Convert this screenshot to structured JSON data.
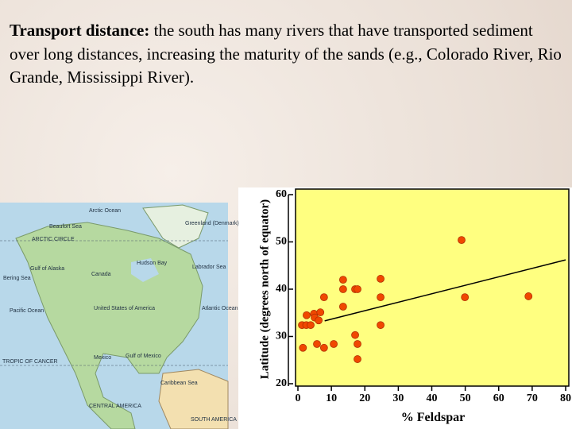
{
  "text": {
    "bold": "Transport distance:",
    "body": "the south has many rivers that have transported sediment over long distances, increasing the maturity of the sands (e.g., Colorado River, Rio Grande, Mississippi River)."
  },
  "map": {
    "labels": [
      "Arctic Ocean",
      "Beaufort Sea",
      "ARCTIC CIRCLE",
      "Gulf of Alaska",
      "Bering Sea",
      "Canada",
      "Hudson Bay",
      "Greenland (Denmark)",
      "Labrador Sea",
      "United States of America",
      "Pacific Ocean",
      "Atlantic Ocean",
      "Gulf of Mexico",
      "Mexico",
      "TROPIC OF CANCER",
      "Caribbean Sea",
      "CENTRAL AMERICA",
      "SOUTH AMERICA"
    ]
  },
  "chart_data": {
    "type": "scatter",
    "x_label": "% Feldspar",
    "y_label": "Latitude (degrees north of equator)",
    "x": [
      1.5,
      1.2,
      2.5,
      2.6,
      3.8,
      4.8,
      5,
      5.7,
      6.2,
      6.7,
      7.8,
      7.8,
      10.7,
      13.5,
      13.5,
      13.5,
      17.1,
      17.8,
      17.1,
      17.8,
      17.8,
      24.7,
      24.7,
      24.7,
      48.9,
      49.9,
      68.9
    ],
    "values": [
      27.6,
      32.4,
      32.4,
      34.5,
      32.4,
      34.8,
      34,
      28.4,
      33.4,
      35.1,
      38.3,
      27.6,
      28.4,
      42,
      40,
      36.3,
      40,
      40,
      30.3,
      28.4,
      25.2,
      42.2,
      38.3,
      32.4,
      50.4,
      38.3,
      38.5
    ],
    "color": "#f04800",
    "trend": {
      "x": [
        8,
        80
      ],
      "values": [
        33.3,
        46.2
      ]
    },
    "xlim": [
      0,
      80
    ],
    "ylim": [
      20,
      60
    ],
    "xticks": [
      0,
      10,
      20,
      30,
      40,
      50,
      60,
      70,
      80
    ],
    "yticks": [
      20,
      30,
      40,
      50,
      60
    ]
  }
}
